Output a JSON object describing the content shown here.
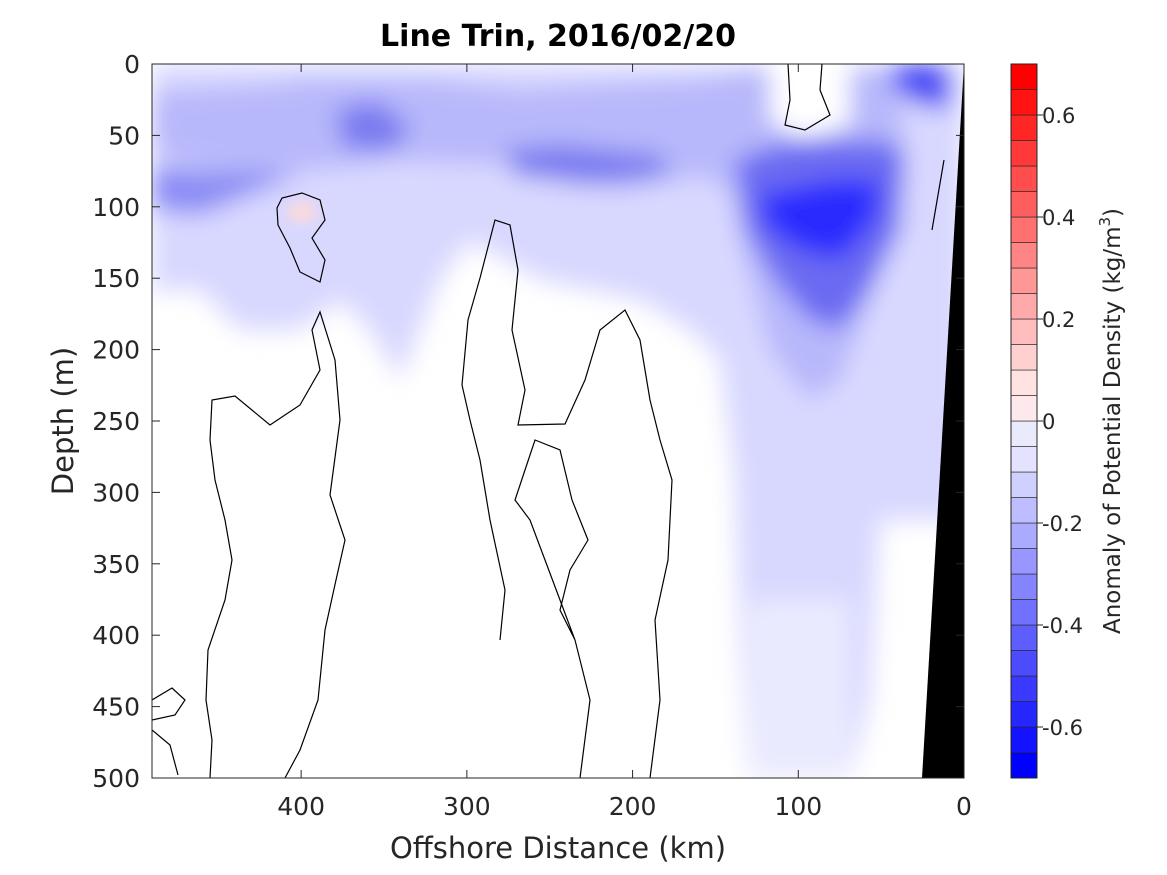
{
  "chart_data": {
    "type": "heatmap",
    "title": "Line Trin, 2016/02/20",
    "xlabel": "Offshore Distance (km)",
    "ylabel": "Depth (m)",
    "xlim": [
      490,
      0
    ],
    "ylim": [
      0,
      500
    ],
    "x_ticks": [
      400,
      300,
      200,
      100,
      0
    ],
    "x_tick_labels": [
      "400",
      "300",
      "200",
      "100",
      "0"
    ],
    "y_ticks": [
      0,
      50,
      100,
      150,
      200,
      250,
      300,
      350,
      400,
      450,
      500
    ],
    "y_tick_labels": [
      "0",
      "50",
      "100",
      "150",
      "200",
      "250",
      "300",
      "350",
      "400",
      "450",
      "500"
    ],
    "colorbar": {
      "label": "Anomaly of Potential Density (kg/m",
      "label_sup": "3",
      "label_end": ")",
      "range": [
        -0.7,
        0.7
      ],
      "step": 0.05,
      "ticks": [
        -0.6,
        -0.4,
        -0.2,
        0,
        0.2,
        0.4,
        0.6
      ],
      "tick_labels": [
        "-0.6",
        "-0.4",
        "-0.2",
        "0",
        "0.2",
        "0.4",
        "0.6"
      ],
      "negative_color": "#0000ff",
      "positive_color": "#ff0000",
      "zero_color": "#ffffff"
    },
    "bathymetry_color": "#000000",
    "features": [
      {
        "name": "surface layer",
        "x_range": [
          490,
          150
        ],
        "depth_range": [
          0,
          150
        ],
        "anomaly": -0.12
      },
      {
        "name": "subsurface band",
        "x_range": [
          490,
          360
        ],
        "depth_range": [
          75,
          110
        ],
        "anomaly": -0.25
      },
      {
        "name": "core near 360 km",
        "x": 360,
        "depth": 50,
        "anomaly": -0.35
      },
      {
        "name": "core near 255 km",
        "x": 255,
        "depth": 70,
        "anomaly": -0.33
      },
      {
        "name": "warm patch",
        "x": 395,
        "depth": 100,
        "anomaly": 0.05
      },
      {
        "name": "deep low-density core",
        "x": 95,
        "depth": 115,
        "anomaly": -0.6
      },
      {
        "name": "shelf surface core",
        "x": 20,
        "depth": 5,
        "anomaly": -0.45
      },
      {
        "name": "weak deep anomaly",
        "x_range": [
          130,
          70
        ],
        "depth_range": [
          350,
          500
        ],
        "anomaly": -0.06
      }
    ]
  }
}
